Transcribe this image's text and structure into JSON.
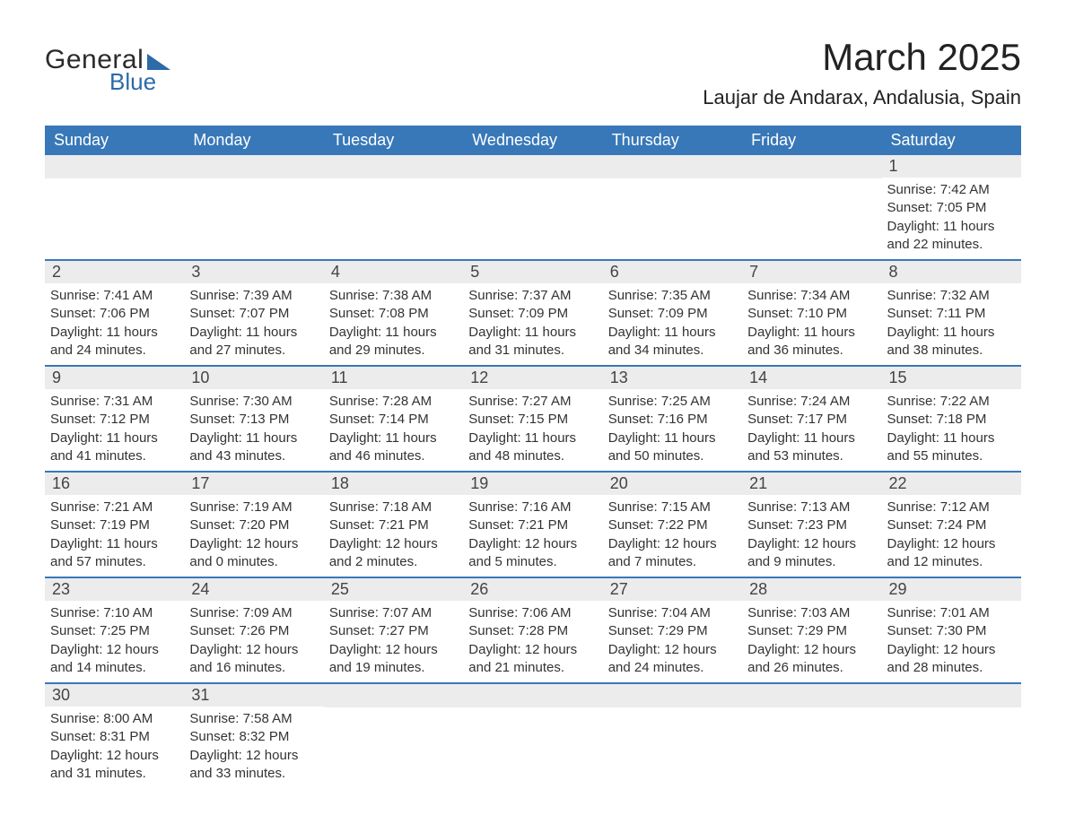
{
  "logo": {
    "text1": "General",
    "text2": "Blue",
    "triangle_color": "#2c6aa8"
  },
  "title": "March 2025",
  "location": "Laujar de Andarax, Andalusia, Spain",
  "colors": {
    "header_bg": "#3878b8",
    "header_text": "#ffffff",
    "daybar_bg": "#ececec",
    "row_border": "#3878b8",
    "body_text": "#333333"
  },
  "daysOfWeek": [
    "Sunday",
    "Monday",
    "Tuesday",
    "Wednesday",
    "Thursday",
    "Friday",
    "Saturday"
  ],
  "weeks": [
    [
      null,
      null,
      null,
      null,
      null,
      null,
      {
        "n": "1",
        "sunrise": "7:42 AM",
        "sunset": "7:05 PM",
        "daylight": "11 hours and 22 minutes."
      }
    ],
    [
      {
        "n": "2",
        "sunrise": "7:41 AM",
        "sunset": "7:06 PM",
        "daylight": "11 hours and 24 minutes."
      },
      {
        "n": "3",
        "sunrise": "7:39 AM",
        "sunset": "7:07 PM",
        "daylight": "11 hours and 27 minutes."
      },
      {
        "n": "4",
        "sunrise": "7:38 AM",
        "sunset": "7:08 PM",
        "daylight": "11 hours and 29 minutes."
      },
      {
        "n": "5",
        "sunrise": "7:37 AM",
        "sunset": "7:09 PM",
        "daylight": "11 hours and 31 minutes."
      },
      {
        "n": "6",
        "sunrise": "7:35 AM",
        "sunset": "7:09 PM",
        "daylight": "11 hours and 34 minutes."
      },
      {
        "n": "7",
        "sunrise": "7:34 AM",
        "sunset": "7:10 PM",
        "daylight": "11 hours and 36 minutes."
      },
      {
        "n": "8",
        "sunrise": "7:32 AM",
        "sunset": "7:11 PM",
        "daylight": "11 hours and 38 minutes."
      }
    ],
    [
      {
        "n": "9",
        "sunrise": "7:31 AM",
        "sunset": "7:12 PM",
        "daylight": "11 hours and 41 minutes."
      },
      {
        "n": "10",
        "sunrise": "7:30 AM",
        "sunset": "7:13 PM",
        "daylight": "11 hours and 43 minutes."
      },
      {
        "n": "11",
        "sunrise": "7:28 AM",
        "sunset": "7:14 PM",
        "daylight": "11 hours and 46 minutes."
      },
      {
        "n": "12",
        "sunrise": "7:27 AM",
        "sunset": "7:15 PM",
        "daylight": "11 hours and 48 minutes."
      },
      {
        "n": "13",
        "sunrise": "7:25 AM",
        "sunset": "7:16 PM",
        "daylight": "11 hours and 50 minutes."
      },
      {
        "n": "14",
        "sunrise": "7:24 AM",
        "sunset": "7:17 PM",
        "daylight": "11 hours and 53 minutes."
      },
      {
        "n": "15",
        "sunrise": "7:22 AM",
        "sunset": "7:18 PM",
        "daylight": "11 hours and 55 minutes."
      }
    ],
    [
      {
        "n": "16",
        "sunrise": "7:21 AM",
        "sunset": "7:19 PM",
        "daylight": "11 hours and 57 minutes."
      },
      {
        "n": "17",
        "sunrise": "7:19 AM",
        "sunset": "7:20 PM",
        "daylight": "12 hours and 0 minutes."
      },
      {
        "n": "18",
        "sunrise": "7:18 AM",
        "sunset": "7:21 PM",
        "daylight": "12 hours and 2 minutes."
      },
      {
        "n": "19",
        "sunrise": "7:16 AM",
        "sunset": "7:21 PM",
        "daylight": "12 hours and 5 minutes."
      },
      {
        "n": "20",
        "sunrise": "7:15 AM",
        "sunset": "7:22 PM",
        "daylight": "12 hours and 7 minutes."
      },
      {
        "n": "21",
        "sunrise": "7:13 AM",
        "sunset": "7:23 PM",
        "daylight": "12 hours and 9 minutes."
      },
      {
        "n": "22",
        "sunrise": "7:12 AM",
        "sunset": "7:24 PM",
        "daylight": "12 hours and 12 minutes."
      }
    ],
    [
      {
        "n": "23",
        "sunrise": "7:10 AM",
        "sunset": "7:25 PM",
        "daylight": "12 hours and 14 minutes."
      },
      {
        "n": "24",
        "sunrise": "7:09 AM",
        "sunset": "7:26 PM",
        "daylight": "12 hours and 16 minutes."
      },
      {
        "n": "25",
        "sunrise": "7:07 AM",
        "sunset": "7:27 PM",
        "daylight": "12 hours and 19 minutes."
      },
      {
        "n": "26",
        "sunrise": "7:06 AM",
        "sunset": "7:28 PM",
        "daylight": "12 hours and 21 minutes."
      },
      {
        "n": "27",
        "sunrise": "7:04 AM",
        "sunset": "7:29 PM",
        "daylight": "12 hours and 24 minutes."
      },
      {
        "n": "28",
        "sunrise": "7:03 AM",
        "sunset": "7:29 PM",
        "daylight": "12 hours and 26 minutes."
      },
      {
        "n": "29",
        "sunrise": "7:01 AM",
        "sunset": "7:30 PM",
        "daylight": "12 hours and 28 minutes."
      }
    ],
    [
      {
        "n": "30",
        "sunrise": "8:00 AM",
        "sunset": "8:31 PM",
        "daylight": "12 hours and 31 minutes."
      },
      {
        "n": "31",
        "sunrise": "7:58 AM",
        "sunset": "8:32 PM",
        "daylight": "12 hours and 33 minutes."
      },
      null,
      null,
      null,
      null,
      null
    ]
  ],
  "labels": {
    "sunrise": "Sunrise: ",
    "sunset": "Sunset: ",
    "daylight": "Daylight: "
  }
}
